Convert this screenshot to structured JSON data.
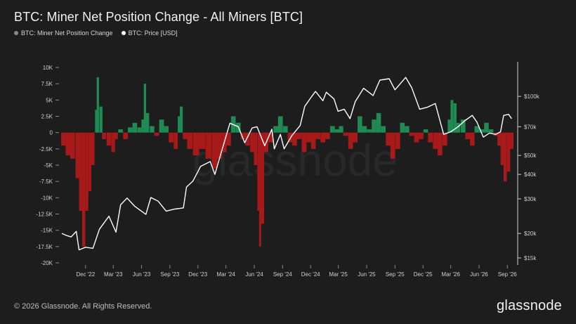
{
  "title": "BTC: Miner Net Position Change - All Miners [BTC]",
  "legend": [
    {
      "label": "BTC: Miner Net Position Change",
      "color": "#8a8a8a"
    },
    {
      "label": "BTC: Price [USD]",
      "color": "#ffffff"
    }
  ],
  "watermark": "glassnode",
  "footer": {
    "copyright": "© 2026 Glassnode. All Rights Reserved.",
    "logo": "glassnode"
  },
  "colors": {
    "positive": "#1f8a52",
    "negative": "#a8191a",
    "price": "#ffffff",
    "background": "#1d1d1d"
  },
  "chart_data": {
    "type": "bar",
    "title": "BTC: Miner Net Position Change - All Miners [BTC]",
    "x_range": [
      "2022-09-15",
      "2026-09-30"
    ],
    "x_ticks": [
      {
        "label": "Dec '22",
        "date": "2022-12-01"
      },
      {
        "label": "Mar '23",
        "date": "2023-03-01"
      },
      {
        "label": "Jun '23",
        "date": "2023-06-01"
      },
      {
        "label": "Sep '23",
        "date": "2023-09-01"
      },
      {
        "label": "Dec '23",
        "date": "2023-12-01"
      },
      {
        "label": "Mar '24",
        "date": "2024-03-01"
      },
      {
        "label": "Jun '24",
        "date": "2024-06-01"
      },
      {
        "label": "Sep '24",
        "date": "2024-09-01"
      },
      {
        "label": "Dec '24",
        "date": "2024-12-01"
      },
      {
        "label": "Mar '25",
        "date": "2025-03-01"
      },
      {
        "label": "Jun '25",
        "date": "2025-06-01"
      },
      {
        "label": "Sep '25",
        "date": "2025-09-01"
      },
      {
        "label": "Dec '25",
        "date": "2025-12-01"
      },
      {
        "label": "Mar '26",
        "date": "2026-03-01"
      },
      {
        "label": "Jun '26",
        "date": "2026-06-01"
      },
      {
        "label": "Sep '26",
        "date": "2026-09-01"
      }
    ],
    "y_left": {
      "ylim": [
        -20000,
        10000
      ],
      "ticks": [
        10000,
        7500,
        5000,
        2500,
        0,
        -2500,
        -5000,
        -7500,
        -10000,
        -12500,
        -15000,
        -17500,
        -20000
      ],
      "tick_labels": [
        "10K",
        "7.5K",
        "5K",
        "2.5K",
        "0",
        "-2.5K",
        "-5K",
        "-7.5K",
        "-10K",
        "-12.5K",
        "-15K",
        "-17.5K",
        "-20K"
      ]
    },
    "y_right": {
      "scale": "log",
      "ylim": [
        15000,
        150000
      ],
      "ticks": [
        100000,
        70000,
        50000,
        40000,
        30000,
        20000,
        15000
      ],
      "tick_labels": [
        "$100k",
        "$70k",
        "$50k",
        "$40k",
        "$30k",
        "$20k",
        "$15k"
      ]
    },
    "grid": false,
    "legend_position": "top-left",
    "series": [
      {
        "name": "BTC: Miner Net Position Change",
        "kind": "bar",
        "points": [
          {
            "date": "2022-09-20",
            "value": -2000
          },
          {
            "date": "2022-10-05",
            "value": -3500
          },
          {
            "date": "2022-10-20",
            "value": -4000
          },
          {
            "date": "2022-11-05",
            "value": -7000
          },
          {
            "date": "2022-11-15",
            "value": -12000
          },
          {
            "date": "2022-11-25",
            "value": -17500
          },
          {
            "date": "2022-12-05",
            "value": -12000
          },
          {
            "date": "2022-12-15",
            "value": -9000
          },
          {
            "date": "2022-12-25",
            "value": -5000
          },
          {
            "date": "2023-01-05",
            "value": 3500
          },
          {
            "date": "2023-01-10",
            "value": 8500
          },
          {
            "date": "2023-01-20",
            "value": 4000
          },
          {
            "date": "2023-01-30",
            "value": -1000
          },
          {
            "date": "2023-02-15",
            "value": -2000
          },
          {
            "date": "2023-03-01",
            "value": -3000
          },
          {
            "date": "2023-03-10",
            "value": -1000
          },
          {
            "date": "2023-03-25",
            "value": 500
          },
          {
            "date": "2023-04-10",
            "value": -1000
          },
          {
            "date": "2023-04-25",
            "value": 800
          },
          {
            "date": "2023-05-10",
            "value": 1500
          },
          {
            "date": "2023-05-25",
            "value": 800
          },
          {
            "date": "2023-06-05",
            "value": 2000
          },
          {
            "date": "2023-06-12",
            "value": 7500
          },
          {
            "date": "2023-06-20",
            "value": 3000
          },
          {
            "date": "2023-07-05",
            "value": 1000
          },
          {
            "date": "2023-07-20",
            "value": -500
          },
          {
            "date": "2023-08-05",
            "value": 2000
          },
          {
            "date": "2023-08-20",
            "value": 1000
          },
          {
            "date": "2023-09-05",
            "value": -1500
          },
          {
            "date": "2023-09-20",
            "value": -2500
          },
          {
            "date": "2023-10-01",
            "value": 2500
          },
          {
            "date": "2023-10-08",
            "value": 4000
          },
          {
            "date": "2023-10-20",
            "value": -1000
          },
          {
            "date": "2023-11-05",
            "value": -2500
          },
          {
            "date": "2023-11-25",
            "value": -3500
          },
          {
            "date": "2023-12-15",
            "value": -2500
          },
          {
            "date": "2024-01-05",
            "value": -4000
          },
          {
            "date": "2024-01-25",
            "value": -5500
          },
          {
            "date": "2024-02-10",
            "value": -4000
          },
          {
            "date": "2024-02-25",
            "value": -3000
          },
          {
            "date": "2024-03-10",
            "value": -2000
          },
          {
            "date": "2024-03-25",
            "value": 2500
          },
          {
            "date": "2024-04-10",
            "value": 1500
          },
          {
            "date": "2024-04-25",
            "value": -1000
          },
          {
            "date": "2024-05-10",
            "value": -2000
          },
          {
            "date": "2024-05-25",
            "value": -3000
          },
          {
            "date": "2024-06-05",
            "value": -5000
          },
          {
            "date": "2024-06-15",
            "value": -12000
          },
          {
            "date": "2024-06-20",
            "value": -17500
          },
          {
            "date": "2024-06-28",
            "value": -14000
          },
          {
            "date": "2024-07-10",
            "value": -3000
          },
          {
            "date": "2024-07-25",
            "value": -1500
          },
          {
            "date": "2024-08-10",
            "value": 1000
          },
          {
            "date": "2024-08-25",
            "value": 2500
          },
          {
            "date": "2024-09-10",
            "value": 1000
          },
          {
            "date": "2024-09-25",
            "value": -1500
          },
          {
            "date": "2024-10-10",
            "value": -2000
          },
          {
            "date": "2024-10-25",
            "value": -1000
          },
          {
            "date": "2024-11-10",
            "value": -3000
          },
          {
            "date": "2024-11-25",
            "value": -1500
          },
          {
            "date": "2024-12-10",
            "value": -2500
          },
          {
            "date": "2024-12-25",
            "value": -1000
          },
          {
            "date": "2025-01-10",
            "value": -1500
          },
          {
            "date": "2025-01-25",
            "value": -1000
          },
          {
            "date": "2025-02-10",
            "value": 1000
          },
          {
            "date": "2025-02-25",
            "value": 500
          },
          {
            "date": "2025-03-10",
            "value": 1000
          },
          {
            "date": "2025-03-25",
            "value": -500
          },
          {
            "date": "2025-04-10",
            "value": -2500
          },
          {
            "date": "2025-04-25",
            "value": -1500
          },
          {
            "date": "2025-05-10",
            "value": 2500
          },
          {
            "date": "2025-05-25",
            "value": 1000
          },
          {
            "date": "2025-06-10",
            "value": 500
          },
          {
            "date": "2025-06-25",
            "value": 2000
          },
          {
            "date": "2025-07-10",
            "value": 3000
          },
          {
            "date": "2025-07-25",
            "value": 1000
          },
          {
            "date": "2025-08-10",
            "value": -2000
          },
          {
            "date": "2025-08-25",
            "value": -4000
          },
          {
            "date": "2025-09-10",
            "value": -2500
          },
          {
            "date": "2025-09-25",
            "value": 1500
          },
          {
            "date": "2025-10-10",
            "value": 1000
          },
          {
            "date": "2025-10-25",
            "value": -500
          },
          {
            "date": "2025-11-10",
            "value": -1500
          },
          {
            "date": "2025-11-25",
            "value": -1000
          },
          {
            "date": "2025-12-10",
            "value": 500
          },
          {
            "date": "2025-12-25",
            "value": -1500
          },
          {
            "date": "2026-01-10",
            "value": -2500
          },
          {
            "date": "2026-01-25",
            "value": -3500
          },
          {
            "date": "2026-02-10",
            "value": -2000
          },
          {
            "date": "2026-02-25",
            "value": 2000
          },
          {
            "date": "2026-03-05",
            "value": 5000
          },
          {
            "date": "2026-03-15",
            "value": 4500
          },
          {
            "date": "2026-03-25",
            "value": 1500
          },
          {
            "date": "2026-04-10",
            "value": 2000
          },
          {
            "date": "2026-04-25",
            "value": -1000
          },
          {
            "date": "2026-05-10",
            "value": -2000
          },
          {
            "date": "2026-05-25",
            "value": 1000
          },
          {
            "date": "2026-06-10",
            "value": 500
          },
          {
            "date": "2026-06-25",
            "value": 1500
          },
          {
            "date": "2026-07-10",
            "value": 500
          },
          {
            "date": "2026-07-25",
            "value": -500
          },
          {
            "date": "2026-08-05",
            "value": -2000
          },
          {
            "date": "2026-08-15",
            "value": -5000
          },
          {
            "date": "2026-08-25",
            "value": -7500
          },
          {
            "date": "2026-09-05",
            "value": -6000
          },
          {
            "date": "2026-09-15",
            "value": -2500
          }
        ]
      },
      {
        "name": "BTC: Price [USD]",
        "kind": "line",
        "axis": "right",
        "points": [
          {
            "date": "2022-09-15",
            "value": 20000
          },
          {
            "date": "2022-10-01",
            "value": 19500
          },
          {
            "date": "2022-10-15",
            "value": 19200
          },
          {
            "date": "2022-11-01",
            "value": 20500
          },
          {
            "date": "2022-11-10",
            "value": 16500
          },
          {
            "date": "2022-12-01",
            "value": 17000
          },
          {
            "date": "2022-12-25",
            "value": 16800
          },
          {
            "date": "2023-01-15",
            "value": 21000
          },
          {
            "date": "2023-02-15",
            "value": 24500
          },
          {
            "date": "2023-03-10",
            "value": 20300
          },
          {
            "date": "2023-03-25",
            "value": 28000
          },
          {
            "date": "2023-04-15",
            "value": 30300
          },
          {
            "date": "2023-05-10",
            "value": 27500
          },
          {
            "date": "2023-06-15",
            "value": 25000
          },
          {
            "date": "2023-07-01",
            "value": 30500
          },
          {
            "date": "2023-07-25",
            "value": 29200
          },
          {
            "date": "2023-08-20",
            "value": 26000
          },
          {
            "date": "2023-09-15",
            "value": 26600
          },
          {
            "date": "2023-10-15",
            "value": 27000
          },
          {
            "date": "2023-10-25",
            "value": 34500
          },
          {
            "date": "2023-11-15",
            "value": 37000
          },
          {
            "date": "2023-12-10",
            "value": 44000
          },
          {
            "date": "2024-01-10",
            "value": 46500
          },
          {
            "date": "2024-01-25",
            "value": 40000
          },
          {
            "date": "2024-02-15",
            "value": 52000
          },
          {
            "date": "2024-03-14",
            "value": 73000
          },
          {
            "date": "2024-04-10",
            "value": 70000
          },
          {
            "date": "2024-05-01",
            "value": 58000
          },
          {
            "date": "2024-05-25",
            "value": 69000
          },
          {
            "date": "2024-06-10",
            "value": 70000
          },
          {
            "date": "2024-07-05",
            "value": 56000
          },
          {
            "date": "2024-07-28",
            "value": 68000
          },
          {
            "date": "2024-08-05",
            "value": 54000
          },
          {
            "date": "2024-08-25",
            "value": 64000
          },
          {
            "date": "2024-09-06",
            "value": 54000
          },
          {
            "date": "2024-10-01",
            "value": 63000
          },
          {
            "date": "2024-10-28",
            "value": 71000
          },
          {
            "date": "2024-11-12",
            "value": 89000
          },
          {
            "date": "2024-12-05",
            "value": 100000
          },
          {
            "date": "2024-12-17",
            "value": 106000
          },
          {
            "date": "2025-01-10",
            "value": 95000
          },
          {
            "date": "2025-01-21",
            "value": 105000
          },
          {
            "date": "2025-02-15",
            "value": 97000
          },
          {
            "date": "2025-02-28",
            "value": 84000
          },
          {
            "date": "2025-03-20",
            "value": 86000
          },
          {
            "date": "2025-04-08",
            "value": 77000
          },
          {
            "date": "2025-04-25",
            "value": 94000
          },
          {
            "date": "2025-05-22",
            "value": 110000
          },
          {
            "date": "2025-06-22",
            "value": 101000
          },
          {
            "date": "2025-07-14",
            "value": 121000
          },
          {
            "date": "2025-08-13",
            "value": 123000
          },
          {
            "date": "2025-09-01",
            "value": 108000
          },
          {
            "date": "2025-10-06",
            "value": 125000
          },
          {
            "date": "2025-10-25",
            "value": 111000
          },
          {
            "date": "2025-11-20",
            "value": 86000
          },
          {
            "date": "2025-12-15",
            "value": 88000
          },
          {
            "date": "2026-01-10",
            "value": 92000
          },
          {
            "date": "2026-02-06",
            "value": 64000
          },
          {
            "date": "2026-03-01",
            "value": 66000
          },
          {
            "date": "2026-03-25",
            "value": 70000
          },
          {
            "date": "2026-04-15",
            "value": 75000
          },
          {
            "date": "2026-05-10",
            "value": 80000
          },
          {
            "date": "2026-05-25",
            "value": 74000
          },
          {
            "date": "2026-06-15",
            "value": 62000
          },
          {
            "date": "2026-07-05",
            "value": 65000
          },
          {
            "date": "2026-07-25",
            "value": 64000
          },
          {
            "date": "2026-08-10",
            "value": 66000
          },
          {
            "date": "2026-08-20",
            "value": 80000
          },
          {
            "date": "2026-09-05",
            "value": 81000
          },
          {
            "date": "2026-09-15",
            "value": 77000
          }
        ]
      }
    ]
  }
}
